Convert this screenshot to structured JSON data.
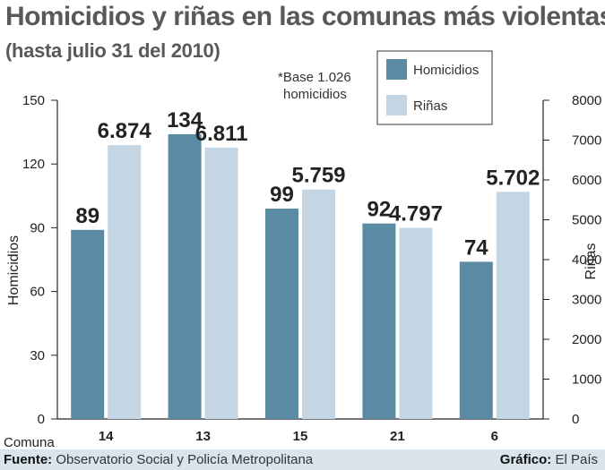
{
  "title": "Homicidios y riñas en las comunas más violentas",
  "subtitle": "(hasta julio 31 del 2010)",
  "note_line1": "*Base 1.026",
  "note_line2": "homicidios",
  "footer": {
    "source_label": "Fuente:",
    "source_text": "Observatorio Social y Policía Metropolitana",
    "credit_label": "Gráfico:",
    "credit_text": "El País"
  },
  "colors": {
    "homicidios": "#5a8aa4",
    "rinas": "#c4d6e3"
  },
  "chart_data": {
    "type": "bar",
    "xlabel": "Comuna",
    "categories": [
      "14",
      "13",
      "15",
      "21",
      "6"
    ],
    "series": [
      {
        "name": "Homicidios",
        "axis": "left",
        "values": [
          89,
          134,
          99,
          92,
          74
        ],
        "labels": [
          "89",
          "134",
          "99",
          "92",
          "74"
        ]
      },
      {
        "name": "Riñas",
        "axis": "right",
        "values": [
          6874,
          6811,
          5759,
          4797,
          5702
        ],
        "labels": [
          "6.874",
          "6.811",
          "5.759",
          "4.797",
          "5.702"
        ]
      }
    ],
    "y_left": {
      "label": "Homicidios",
      "min": 0,
      "max": 150,
      "ticks": [
        0,
        30,
        60,
        90,
        120,
        150
      ]
    },
    "y_right": {
      "label": "Riñas",
      "min": 0,
      "max": 8000,
      "ticks": [
        0,
        1000,
        2000,
        3000,
        4000,
        5000,
        6000,
        7000,
        8000
      ]
    },
    "legend_position": "top-right",
    "grid": false
  }
}
